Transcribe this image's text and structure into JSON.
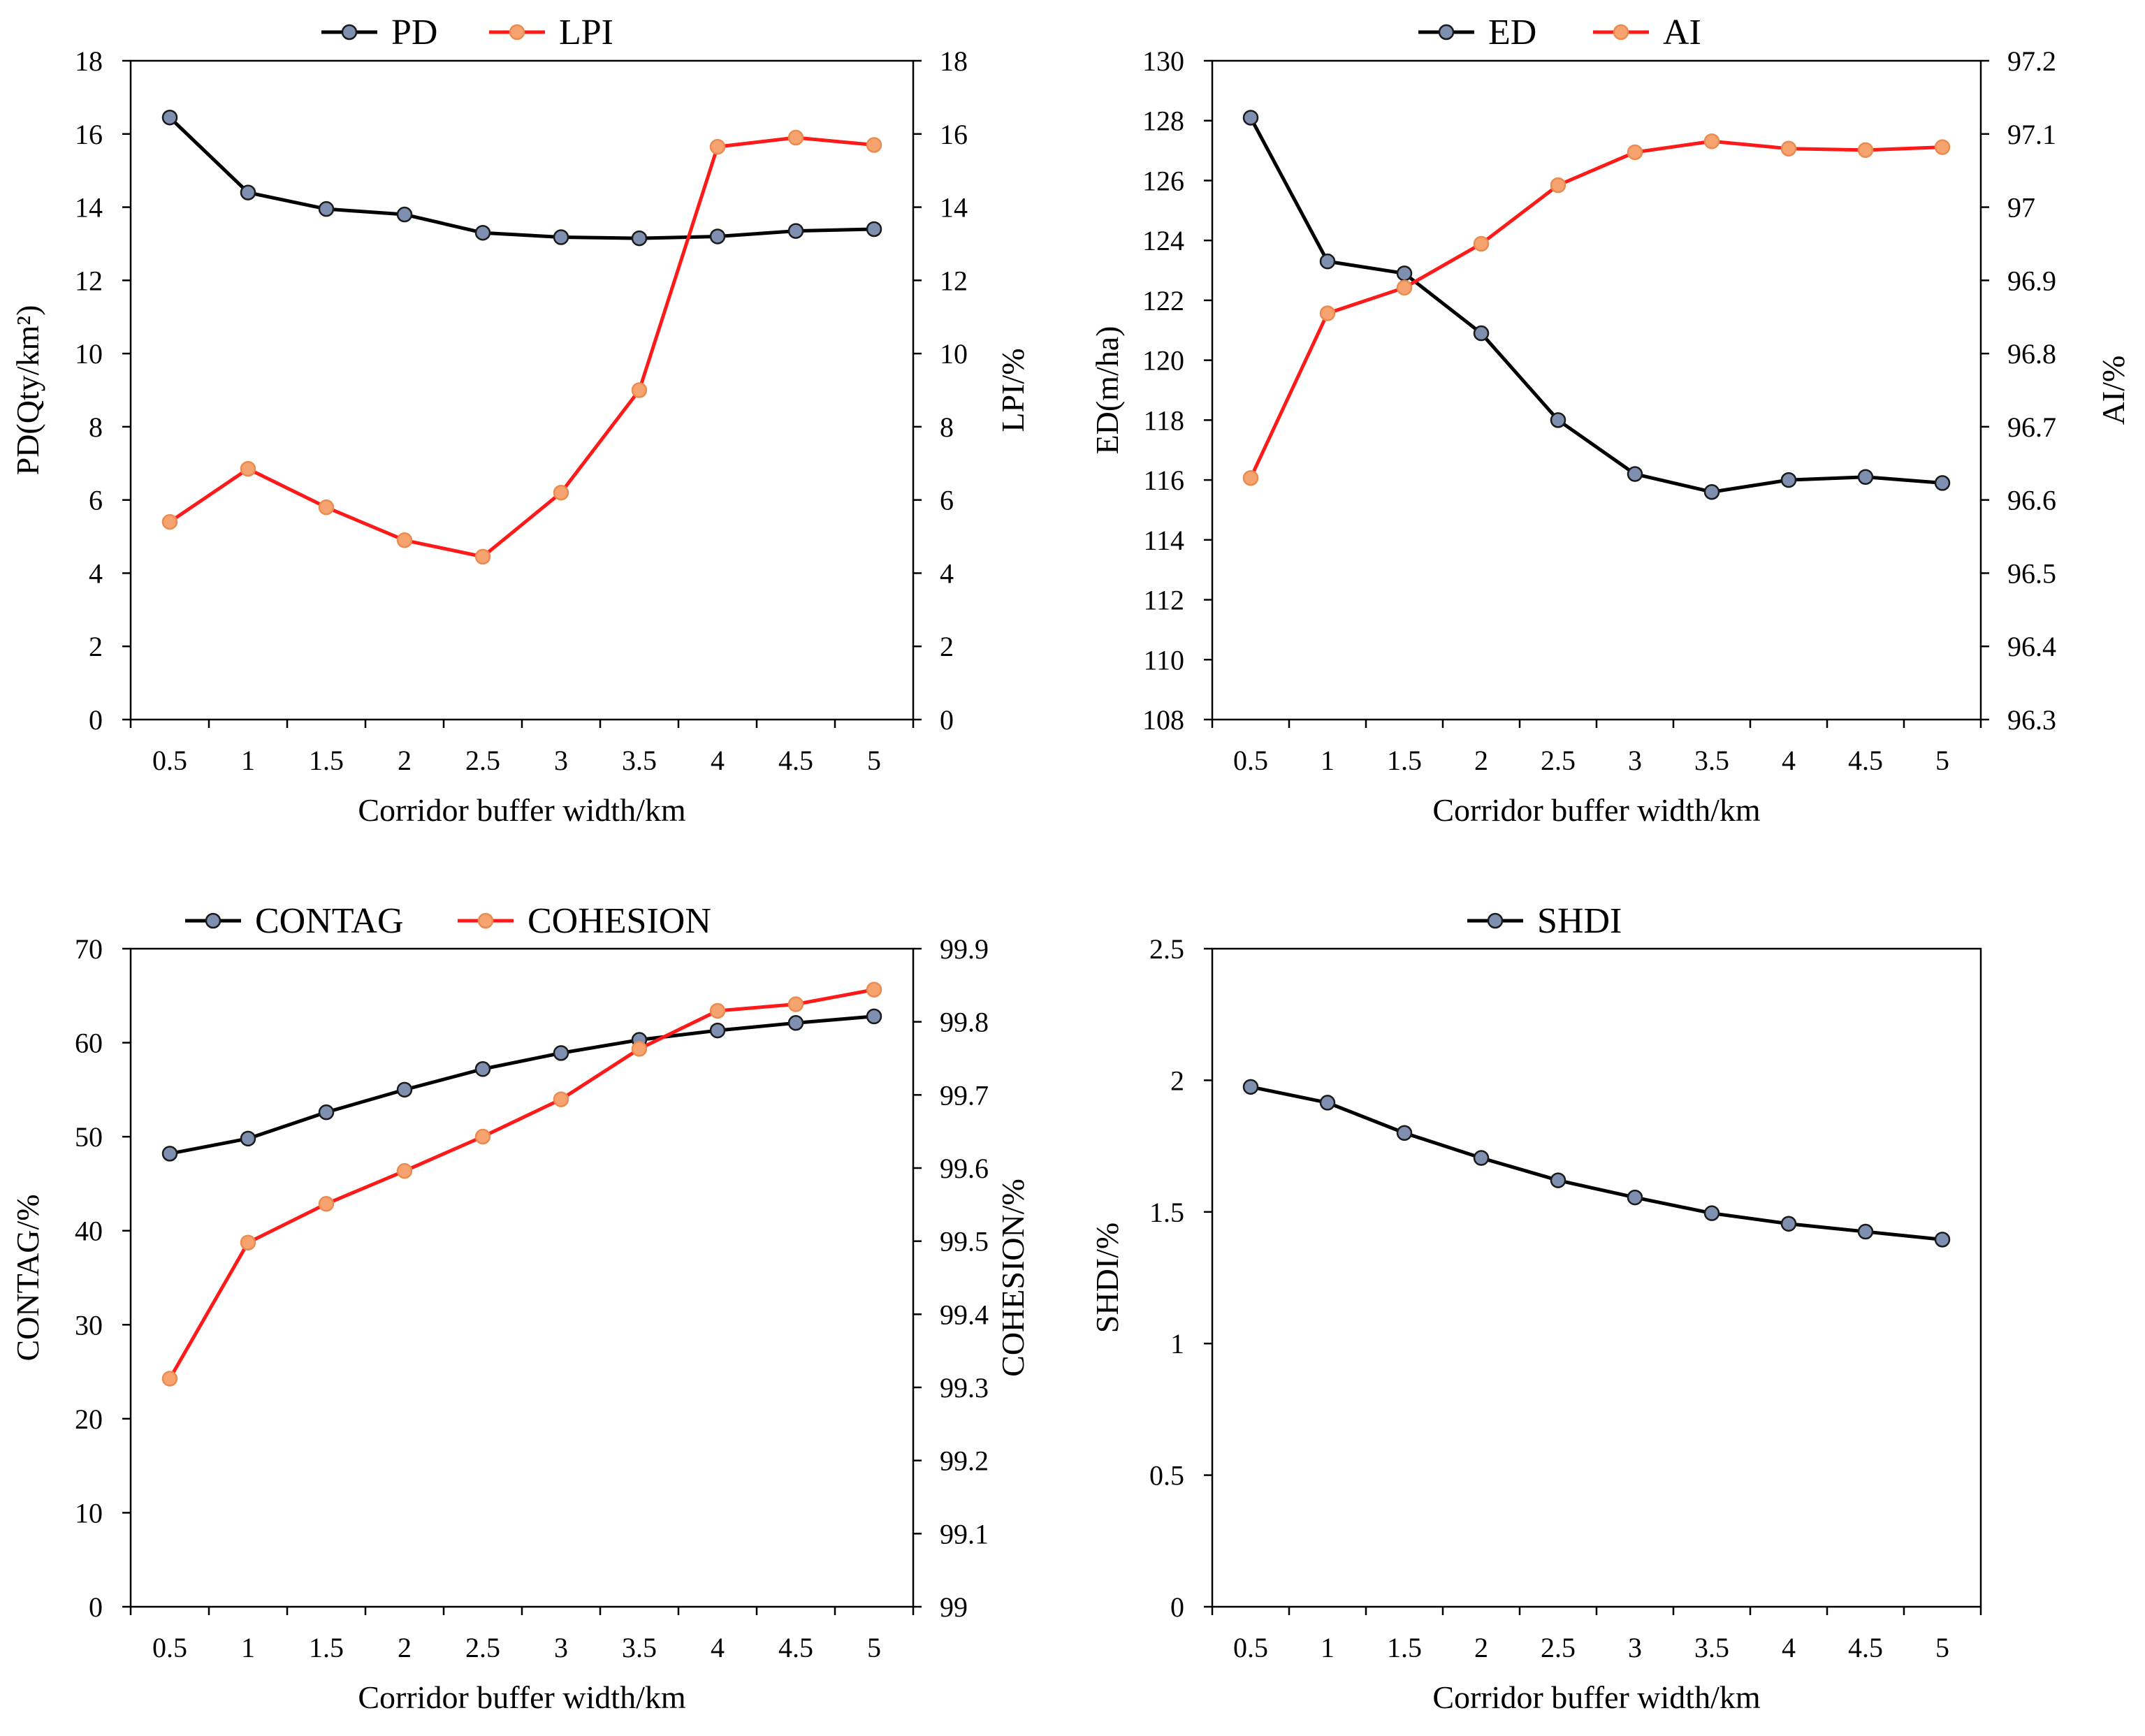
{
  "colors": {
    "series_a_line": "#000000",
    "series_a_marker": "#7f8fb0",
    "series_b_line": "#ff1a1a",
    "series_b_marker": "#f6a36f"
  },
  "chart_data": [
    {
      "type": "line",
      "xlabel": "Corridor  buffer  width/km",
      "categories": [
        "0.5",
        "1",
        "1.5",
        "2",
        "2.5",
        "3",
        "3.5",
        "4",
        "4.5",
        "5"
      ],
      "left_axis": {
        "label": "PD(Qty/km²)",
        "ylim": [
          0,
          18
        ],
        "ticks": [
          "0",
          "2",
          "4",
          "6",
          "8",
          "10",
          "12",
          "14",
          "16",
          "18"
        ]
      },
      "right_axis": {
        "label": "LPI/%",
        "ylim": [
          0,
          18
        ],
        "ticks": [
          "0",
          "2",
          "4",
          "6",
          "8",
          "10",
          "12",
          "14",
          "16",
          "18"
        ]
      },
      "series": [
        {
          "name": "PD",
          "axis": "left",
          "values": [
            16.45,
            14.4,
            13.95,
            13.8,
            13.3,
            13.18,
            13.15,
            13.2,
            13.35,
            13.4
          ]
        },
        {
          "name": "LPI",
          "axis": "right",
          "values": [
            5.4,
            6.85,
            5.8,
            4.9,
            4.45,
            6.2,
            9.0,
            15.65,
            15.9,
            15.7
          ]
        }
      ]
    },
    {
      "type": "line",
      "xlabel": "Corridor  buffer  width/km",
      "categories": [
        "0.5",
        "1",
        "1.5",
        "2",
        "2.5",
        "3",
        "3.5",
        "4",
        "4.5",
        "5"
      ],
      "left_axis": {
        "label": "ED(m/ha)",
        "ylim": [
          108,
          130
        ],
        "ticks": [
          "108",
          "110",
          "112",
          "114",
          "116",
          "118",
          "120",
          "122",
          "124",
          "126",
          "128",
          "130"
        ]
      },
      "right_axis": {
        "label": "AI/%",
        "ylim": [
          96.3,
          97.2
        ],
        "ticks": [
          "96.3",
          "96.4",
          "96.5",
          "96.6",
          "96.7",
          "96.8",
          "96.9",
          "97",
          "97.1",
          "97.2"
        ]
      },
      "series": [
        {
          "name": "ED",
          "axis": "left",
          "values": [
            128.1,
            123.3,
            122.9,
            120.9,
            118.0,
            116.2,
            115.6,
            116.0,
            116.1,
            115.9
          ]
        },
        {
          "name": "AI",
          "axis": "right",
          "values": [
            96.63,
            96.855,
            96.89,
            96.95,
            97.03,
            97.075,
            97.09,
            97.08,
            97.078,
            97.082
          ]
        }
      ]
    },
    {
      "type": "line",
      "xlabel": "Corridor  buffer  width/km",
      "categories": [
        "0.5",
        "1",
        "1.5",
        "2",
        "2.5",
        "3",
        "3.5",
        "4",
        "4.5",
        "5"
      ],
      "left_axis": {
        "label": "CONTAG/%",
        "ylim": [
          0,
          70
        ],
        "ticks": [
          "0",
          "10",
          "20",
          "30",
          "40",
          "50",
          "60",
          "70"
        ]
      },
      "right_axis": {
        "label": "COHESION/%",
        "ylim": [
          99,
          99.9
        ],
        "ticks": [
          "99",
          "99.1",
          "99.2",
          "99.3",
          "99.4",
          "99.5",
          "99.6",
          "99.7",
          "99.8",
          "99.9"
        ]
      },
      "series": [
        {
          "name": "CONTAG",
          "axis": "left",
          "values": [
            48.2,
            49.8,
            52.6,
            55.0,
            57.2,
            58.9,
            60.3,
            61.3,
            62.1,
            62.8
          ]
        },
        {
          "name": "COHESION",
          "axis": "right",
          "values": [
            99.312,
            99.498,
            99.551,
            99.596,
            99.643,
            99.694,
            99.763,
            99.815,
            99.824,
            99.844
          ]
        }
      ]
    },
    {
      "type": "line",
      "xlabel": "Corridor  buffer  width/km",
      "categories": [
        "0.5",
        "1",
        "1.5",
        "2",
        "2.5",
        "3",
        "3.5",
        "4",
        "4.5",
        "5"
      ],
      "left_axis": {
        "label": "SHDI/%",
        "ylim": [
          0,
          2.5
        ],
        "ticks": [
          "0",
          "0.5",
          "1",
          "1.5",
          "2",
          "2.5"
        ]
      },
      "series": [
        {
          "name": "SHDI",
          "axis": "left",
          "values": [
            1.975,
            1.915,
            1.8,
            1.705,
            1.62,
            1.555,
            1.495,
            1.455,
            1.425,
            1.395
          ]
        }
      ]
    }
  ]
}
